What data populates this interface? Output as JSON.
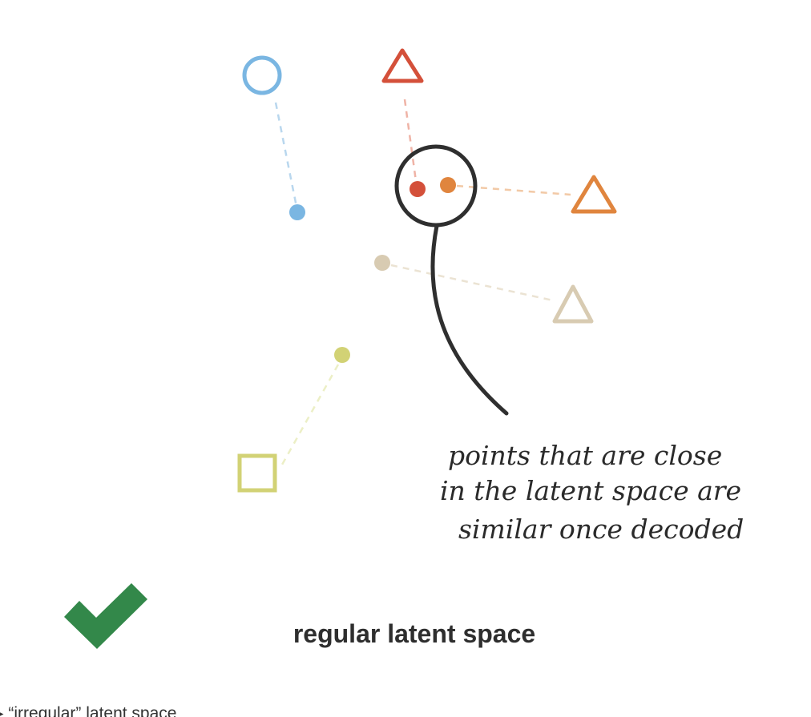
{
  "annotation": {
    "line1": "points that are close",
    "line2": "in the latent space are",
    "line3": "similar once decoded"
  },
  "caption": "regular latent space",
  "bottom_cutoff_text": "▸ “irregular” latent space",
  "icons": {
    "checkmark": "checkmark-icon"
  },
  "colors": {
    "blue": "#7ab6e2",
    "red": "#d4503a",
    "orange": "#e0853e",
    "beige": "#d8cbb2",
    "olive": "#d2d275",
    "green": "#33884a",
    "ink": "#2f2f2f"
  }
}
